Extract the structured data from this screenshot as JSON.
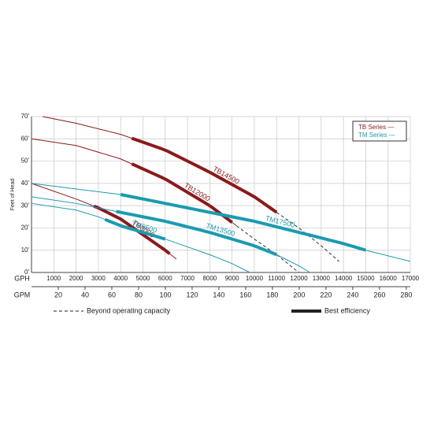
{
  "chart_data": {
    "type": "line",
    "y_label": "Feet of Head",
    "x_label": "GPH",
    "x2_label": "GPM",
    "xlim": [
      0,
      17000
    ],
    "xticks": [
      1000,
      2000,
      3000,
      4000,
      5000,
      6000,
      7000,
      8000,
      9000,
      10000,
      11000,
      12000,
      13000,
      14000,
      15000,
      16000,
      17000
    ],
    "x2lim": [
      0,
      283
    ],
    "x2ticks": [
      20,
      40,
      60,
      80,
      100,
      120,
      140,
      160,
      180,
      200,
      220,
      240,
      260,
      280
    ],
    "ylim": [
      0,
      70
    ],
    "yticks": [
      {
        "value": 0,
        "label": "0'"
      },
      {
        "value": 10,
        "label": "10'"
      },
      {
        "value": 20,
        "label": "20'"
      },
      {
        "value": 30,
        "label": "30'"
      },
      {
        "value": 40,
        "label": "40'"
      },
      {
        "value": 50,
        "label": "50'"
      },
      {
        "value": 60,
        "label": "60'"
      },
      {
        "value": 70,
        "label": "70'"
      }
    ],
    "grid": true,
    "legend": [
      {
        "name": "TB Series —",
        "color": "#8b1a1a"
      },
      {
        "name": "TM Series —",
        "color": "#1a9bb0"
      }
    ],
    "legend_position": "upper right",
    "series": [
      {
        "name": "TB14500",
        "color": "#8b1a1a",
        "x": [
          500,
          2000,
          4000,
          6000,
          8000,
          10000,
          11000,
          12000,
          13000,
          13800
        ],
        "values": [
          70,
          67,
          62,
          55,
          45,
          34,
          27,
          20,
          12,
          5
        ],
        "best_efficiency": [
          4500,
          11000
        ],
        "limit": 11000
      },
      {
        "name": "TB12000",
        "color": "#8b1a1a",
        "x": [
          0,
          2000,
          4000,
          6000,
          8000,
          9200,
          10000,
          11000,
          12000
        ],
        "values": [
          60,
          57,
          51,
          42,
          30,
          21,
          15,
          8,
          0
        ],
        "best_efficiency": [
          4500,
          9000
        ],
        "limit": 9200
      },
      {
        "name": "TB8000",
        "color": "#8b1a1a",
        "x": [
          0,
          2000,
          3000,
          4000,
          5000,
          6000,
          6500
        ],
        "values": [
          40,
          33,
          29,
          24,
          17,
          10,
          6
        ],
        "best_efficiency": [
          2800,
          6200
        ]
      },
      {
        "name": "TM17500",
        "color": "#1a9bb0",
        "x": [
          0,
          4000,
          6000,
          8000,
          10000,
          12000,
          14000,
          15000,
          17000
        ],
        "values": [
          40,
          35,
          31,
          27,
          23,
          18,
          13,
          10,
          5
        ],
        "best_efficiency": [
          4000,
          15000
        ]
      },
      {
        "name": "TM13500",
        "color": "#1a9bb0",
        "x": [
          0,
          2000,
          4000,
          6000,
          8000,
          10000,
          11000,
          12000,
          12500
        ],
        "values": [
          34,
          31,
          27,
          23,
          18,
          12,
          8,
          3,
          0
        ],
        "best_efficiency": [
          3800,
          11000
        ]
      },
      {
        "name": "TM9500",
        "color": "#1a9bb0",
        "x": [
          0,
          2000,
          3000,
          4000,
          6000,
          8000,
          9000,
          9800
        ],
        "values": [
          31,
          28,
          25,
          21,
          15,
          8,
          4,
          0
        ],
        "best_efficiency": [
          3300,
          6000
        ]
      }
    ],
    "key": [
      {
        "style": "dashed",
        "label": "Beyond operating capacity"
      },
      {
        "style": "thick",
        "label": "Best efficiency"
      }
    ]
  }
}
